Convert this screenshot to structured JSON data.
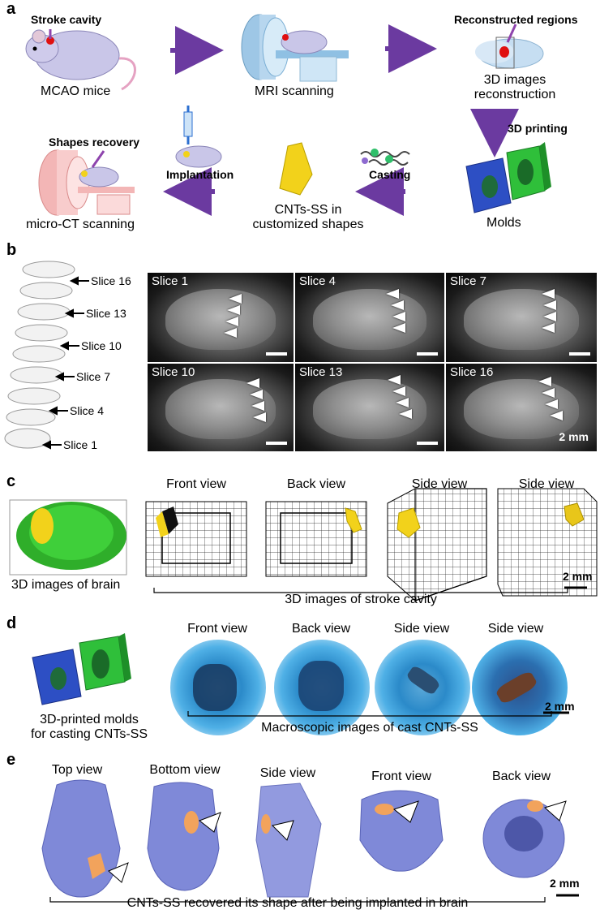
{
  "panels": {
    "a": {
      "label": "a",
      "stroke_cavity": "Stroke cavity",
      "mcao_mice": "MCAO mice",
      "mri_scanning": "MRI scanning",
      "reconstructed_regions": "Reconstructed regions",
      "images_reconstruction_1": "3D images",
      "images_reconstruction_2": "reconstruction",
      "printing": "3D printing",
      "molds": "Molds",
      "casting": "Casting",
      "cnts_ss_1": "CNTs-SS in",
      "cnts_ss_2": "customized shapes",
      "implantation": "Implantation",
      "shapes_recovery": "Shapes recovery",
      "micro_ct": "micro-CT scanning"
    },
    "b": {
      "label": "b",
      "stack_labels": [
        "Slice 16",
        "Slice 13",
        "Slice 10",
        "Slice 7",
        "Slice 4",
        "Slice 1"
      ],
      "mri_tiles": [
        "Slice 1",
        "Slice 4",
        "Slice 7",
        "Slice 10",
        "Slice 13",
        "Slice 16"
      ],
      "scale": "2 mm"
    },
    "c": {
      "label": "c",
      "views": [
        "Front view",
        "Back view",
        "Side view",
        "Side view"
      ],
      "brain_caption": "3D images of brain",
      "cavity_caption": "3D images of stroke cavity",
      "scale": "2 mm"
    },
    "d": {
      "label": "d",
      "views": [
        "Front view",
        "Back view",
        "Side view",
        "Side view"
      ],
      "molds_caption_1": "3D-printed molds",
      "molds_caption_2": "for casting CNTs-SS",
      "macro_caption": "Macroscopic images of cast CNTs-SS",
      "scale": "2 mm"
    },
    "e": {
      "label": "e",
      "views": [
        "Top view",
        "Bottom view",
        "Side view",
        "Front view",
        "Back view"
      ],
      "caption": "CNTs-SS recovered its shape after being implanted in brain",
      "scale": "2 mm"
    }
  },
  "colors": {
    "arrow": "#6b3aa0",
    "mouse": "#c9c6e8",
    "mold_green": "#2fbf3a",
    "mold_blue": "#2d4fc4",
    "ss_yellow": "#f2d21b",
    "skull": "#7f89d8",
    "implant": "#f2a35c"
  }
}
